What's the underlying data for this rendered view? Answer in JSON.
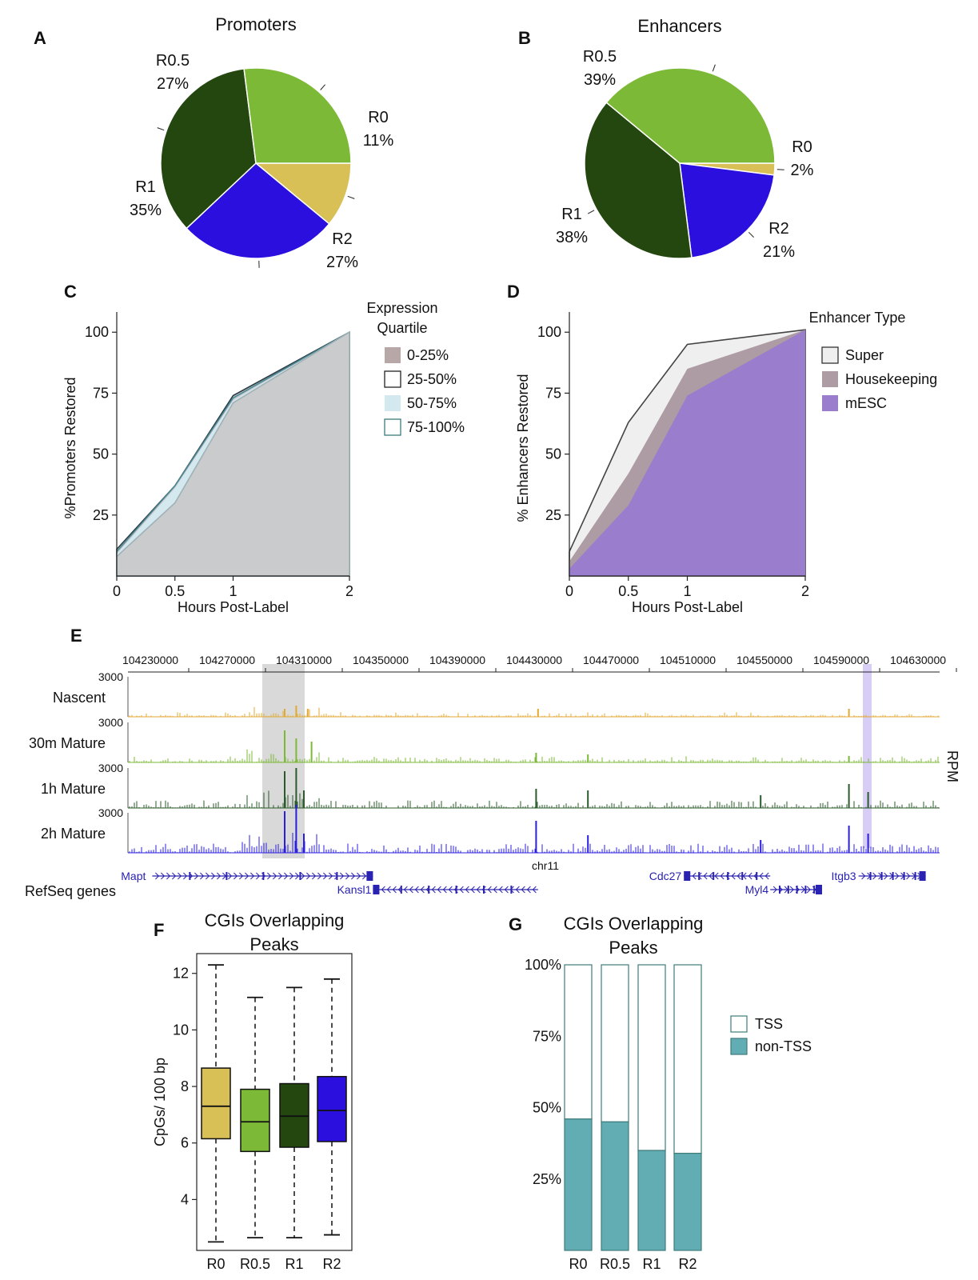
{
  "colors": {
    "R0": "#d8bf56",
    "R0.5": "#7cb936",
    "R1": "#23470f",
    "R2": "#2a0fde",
    "nascent": "#e0aa33",
    "mature30m": "#7cb936",
    "mature1h": "#2b5b2b",
    "mature2h": "#2a1fe0",
    "gene": "#2a22b0",
    "tss_fill": "#ffffff",
    "nontss_fill": "#62adb3",
    "stroke_teal": "#3e7b7b",
    "q0_25": "#b8a7a7",
    "q50_75": "#d3e8ef",
    "area_grey": "#cacbcd",
    "super": "#efefef",
    "housekeeping": "#ad9ca4",
    "mesc": "#9a7dcc",
    "highlight_grey": "#d9d9d9",
    "highlight_purple": "#d8cdf5"
  },
  "chart_data": [
    {
      "id": "A",
      "type": "pie",
      "panel_label": "A",
      "title": "Promoters",
      "slices": [
        {
          "name": "R0",
          "value": 11,
          "label": "R0",
          "pct": "11%"
        },
        {
          "name": "R2",
          "value": 27,
          "label": "R2",
          "pct": "27%"
        },
        {
          "name": "R1",
          "value": 35,
          "label": "R1",
          "pct": "35%"
        },
        {
          "name": "R0.5",
          "value": 27,
          "label": "R0.5",
          "pct": "27%"
        }
      ]
    },
    {
      "id": "B",
      "type": "pie",
      "panel_label": "B",
      "title": "Enhancers",
      "slices": [
        {
          "name": "R0",
          "value": 2,
          "label": "R0",
          "pct": "2%"
        },
        {
          "name": "R2",
          "value": 21,
          "label": "R2",
          "pct": "21%"
        },
        {
          "name": "R1",
          "value": 38,
          "label": "R1",
          "pct": "38%"
        },
        {
          "name": "R0.5",
          "value": 39,
          "label": "R0.5",
          "pct": "39%"
        }
      ]
    },
    {
      "id": "C",
      "type": "area",
      "panel_label": "C",
      "xlabel": "Hours Post-Label",
      "ylabel": "%Promoters Restored",
      "x": [
        0,
        0.5,
        1,
        2
      ],
      "xticks": [
        "0",
        "0.5",
        "1",
        "2"
      ],
      "yticks": [
        "25",
        "50",
        "75",
        "100"
      ],
      "xlim": [
        0,
        2
      ],
      "ylim": [
        0,
        105
      ],
      "legend_title": "Expression Quartile",
      "series": [
        {
          "name": "25-50%",
          "values": [
            11,
            37,
            74,
            100
          ]
        },
        {
          "name": "75-100%",
          "values": [
            10,
            37,
            73,
            100
          ]
        },
        {
          "name": "50-75%",
          "values": [
            9,
            36,
            72,
            100
          ]
        },
        {
          "name": "0-25%",
          "values": [
            8,
            30,
            71,
            100
          ]
        }
      ]
    },
    {
      "id": "D",
      "type": "area",
      "panel_label": "D",
      "xlabel": "Hours Post-Label",
      "ylabel": "% Enhancers Restored",
      "x": [
        0,
        0.5,
        1,
        2
      ],
      "xticks": [
        "0",
        "0.5",
        "1",
        "2"
      ],
      "yticks": [
        "25",
        "50",
        "75",
        "100"
      ],
      "xlim": [
        0,
        2
      ],
      "ylim": [
        0,
        105
      ],
      "legend_title": "Enhancer Type",
      "series": [
        {
          "name": "Super",
          "values": [
            10,
            63,
            95,
            101
          ]
        },
        {
          "name": "Housekeeping",
          "values": [
            6,
            42,
            85,
            101
          ]
        },
        {
          "name": "mESC",
          "values": [
            3,
            29,
            74,
            101
          ]
        }
      ]
    },
    {
      "id": "E",
      "type": "genome-browser",
      "panel_label": "E",
      "coordinates": [
        "104230000",
        "104270000",
        "104310000",
        "104350000",
        "104390000",
        "104430000",
        "104470000",
        "104510000",
        "104550000",
        "104590000",
        "104630000"
      ],
      "chromosome": "chr11",
      "unit": "RPM",
      "tracks": [
        {
          "name": "Nascent",
          "max": "3000",
          "peak_positions": [
            104306000,
            104300000,
            104312000,
            104432000,
            104594000
          ]
        },
        {
          "name": "30m Mature",
          "max": "3000",
          "peak_positions": [
            104300000,
            104306000,
            104314000,
            104431000,
            104458000,
            104594000
          ]
        },
        {
          "name": "1h Mature",
          "max": "3000",
          "peak_positions": [
            104300000,
            104306000,
            104310000,
            104431000,
            104458000,
            104548000,
            104594000,
            104604000
          ]
        },
        {
          "name": "2h Mature",
          "max": "3000",
          "peak_positions": [
            104300000,
            104306000,
            104310000,
            104431000,
            104458000,
            104548000,
            104594000,
            104604000
          ]
        }
      ],
      "genes_label": "RefSeq genes",
      "genes": [
        {
          "name": "Mapt",
          "start": 104231000,
          "end": 104346000,
          "row": 0,
          "dir": "+"
        },
        {
          "name": "Kansl1",
          "start": 104346000,
          "end": 104432000,
          "row": 1,
          "dir": "-"
        },
        {
          "name": "Cdc27",
          "start": 104508000,
          "end": 104553000,
          "row": 0,
          "dir": "-"
        },
        {
          "name": "Myl4",
          "start": 104553000,
          "end": 104580000,
          "row": 1,
          "dir": "+"
        },
        {
          "name": "Itgb3",
          "start": 104599000,
          "end": 104634000,
          "row": 0,
          "dir": "+"
        }
      ]
    },
    {
      "id": "F",
      "type": "box",
      "panel_label": "F",
      "title": "CGIs Overlapping Peaks",
      "title_lines": [
        "CGIs Overlapping",
        "Peaks"
      ],
      "ylabel": "CpGs/ 100 bp",
      "categories": [
        "R0",
        "R0.5",
        "R1",
        "R2"
      ],
      "yticks": [
        "4",
        "6",
        "8",
        "10",
        "12"
      ],
      "ylim": [
        2.2,
        12.7
      ],
      "boxes": [
        {
          "name": "R0",
          "min": 2.5,
          "q1": 6.15,
          "median": 7.3,
          "q3": 8.65,
          "max": 12.3
        },
        {
          "name": "R0.5",
          "min": 2.65,
          "q1": 5.7,
          "median": 6.75,
          "q3": 7.9,
          "max": 11.15
        },
        {
          "name": "R1",
          "min": 2.65,
          "q1": 5.85,
          "median": 6.95,
          "q3": 8.1,
          "max": 11.5
        },
        {
          "name": "R2",
          "min": 2.75,
          "q1": 6.05,
          "median": 7.15,
          "q3": 8.35,
          "max": 11.8
        }
      ]
    },
    {
      "id": "G",
      "type": "bar",
      "panel_label": "G",
      "title": "CGIs Overlapping Peaks",
      "title_lines": [
        "CGIs Overlapping",
        "Peaks"
      ],
      "categories": [
        "R0",
        "R0.5",
        "R1",
        "R2"
      ],
      "yticks": [
        "25%",
        "50%",
        "75%",
        "100%"
      ],
      "ylim": [
        0,
        100
      ],
      "stacked": true,
      "series": [
        {
          "name": "non-TSS",
          "values": [
            46,
            45,
            35,
            34
          ]
        },
        {
          "name": "TSS",
          "values": [
            54,
            55,
            65,
            66
          ]
        }
      ]
    }
  ]
}
